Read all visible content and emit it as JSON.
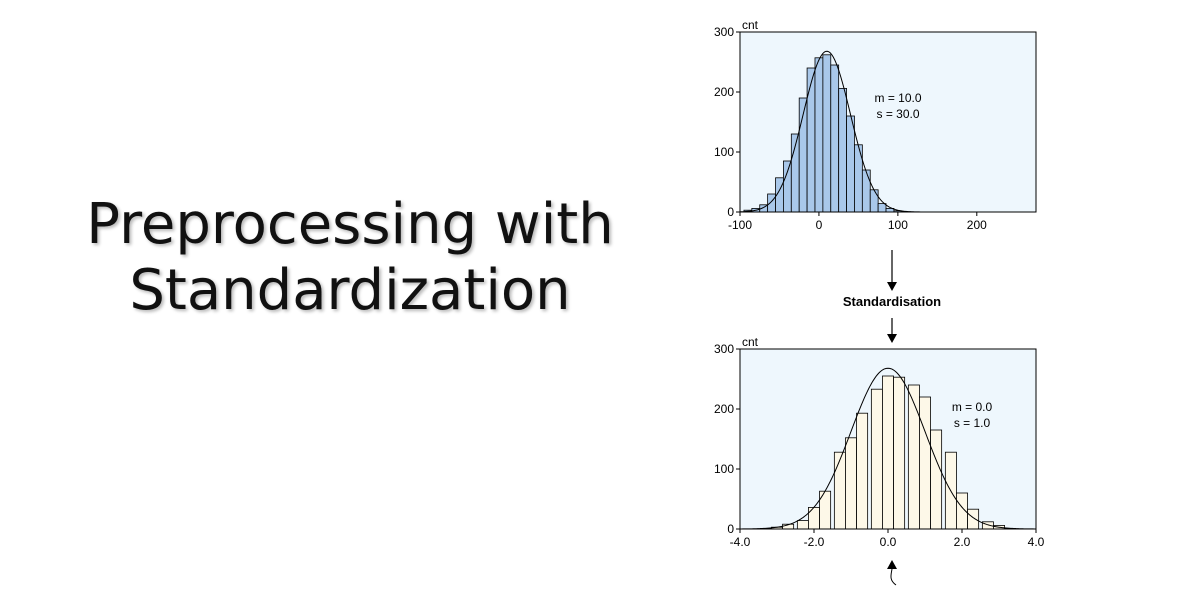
{
  "title": {
    "line1": "Preprocessing with",
    "line2": "Standardization"
  },
  "transform_label": "Standardisation",
  "colors": {
    "plot_background": "#eef7fd",
    "top_bars": "#a9c8ea",
    "bottom_bars": "#fdf8e8",
    "frame": "#000000"
  },
  "chart_data": [
    {
      "type": "bar",
      "ylabel": "cnt",
      "ylim": [
        0,
        300
      ],
      "yticks": [
        0,
        100,
        200,
        300
      ],
      "xlim": [
        -100,
        275
      ],
      "xticks": [
        -100,
        0,
        100,
        200
      ],
      "annotation": [
        "m = 10.0",
        "s = 30.0"
      ],
      "bar_color": "#a9c8ea",
      "curve": {
        "type": "normal",
        "mean": 10,
        "sd": 30,
        "peak": 268
      },
      "bins_x": [
        -90,
        -80,
        -70,
        -60,
        -50,
        -40,
        -30,
        -20,
        -10,
        0,
        10,
        20,
        30,
        40,
        50,
        60,
        70,
        80,
        90,
        100
      ],
      "values": [
        3,
        6,
        12,
        30,
        57,
        85,
        130,
        190,
        240,
        257,
        262,
        245,
        206,
        160,
        112,
        70,
        37,
        14,
        6,
        2
      ]
    },
    {
      "type": "bar",
      "ylabel": "cnt",
      "ylim": [
        0,
        300
      ],
      "yticks": [
        0,
        100,
        200,
        300
      ],
      "xlim": [
        -4.0,
        4.0
      ],
      "xticks": [
        "-4.0",
        "-2.0",
        "0.0",
        "2.0",
        "4.0"
      ],
      "annotation": [
        "m = 0.0",
        "s = 1.0"
      ],
      "bar_color": "#fdf8e8",
      "curve": {
        "type": "normal",
        "mean": 0,
        "sd": 1,
        "peak": 268
      },
      "bins_x": [
        -3.3,
        -3.0,
        -2.7,
        -2.3,
        -2.0,
        -1.7,
        -1.3,
        -1.0,
        -0.7,
        -0.3,
        0.0,
        0.3,
        0.7,
        1.0,
        1.3,
        1.7,
        2.0,
        2.3,
        2.7,
        3.0,
        3.3
      ],
      "values": [
        1,
        3,
        8,
        14,
        36,
        63,
        128,
        152,
        193,
        233,
        255,
        253,
        240,
        220,
        165,
        128,
        60,
        33,
        12,
        6,
        1
      ]
    }
  ]
}
